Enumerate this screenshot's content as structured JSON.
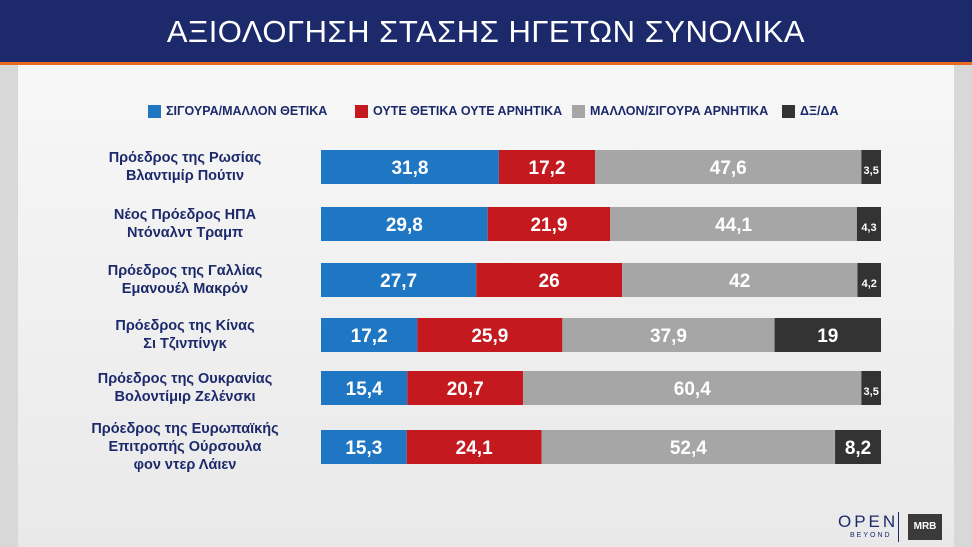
{
  "header": {
    "title": "ΑΞΙΟΛΟΓΗΣΗ ΣΤΑΣΗΣ ΗΓΕΤΩΝ ΣΥΝΟΛΙΚΑ"
  },
  "logos": {
    "open": "OPEN",
    "open_sub": "BEYOND",
    "mrb": "MRB"
  },
  "chart_data": {
    "type": "bar",
    "orientation": "horizontal",
    "stacked": true,
    "title": "ΑΞΙΟΛΟΓΗΣΗ ΣΤΑΣΗΣ ΗΓΕΤΩΝ ΣΥΝΟΛΙΚΑ",
    "legend_position": "top",
    "grid": false,
    "categories": [
      [
        "Πρόεδρος της Ρωσίας",
        "Βλαντιμίρ Πούτιν"
      ],
      [
        "Νέος Πρόεδρος ΗΠΑ",
        "Ντόναλντ Τραμπ"
      ],
      [
        "Πρόεδρος της Γαλλίας",
        "Εμανουέλ Μακρόν"
      ],
      [
        "Πρόεδρος της Κίνας",
        "Σι Τζινπίνγκ"
      ],
      [
        "Πρόεδρος της Ουκρανίας",
        "Βολοντίμιρ Ζελένσκι"
      ],
      [
        "Πρόεδρος της Ευρωπαϊκής",
        "Επιτροπής Ούρσουλα",
        "φον ντερ Λάιεν"
      ]
    ],
    "series": [
      {
        "name": "ΣΙΓΟΥΡΑ/ΜΑΛΛΟΝ ΘΕΤΙΚΑ",
        "color": "#1f76c2",
        "values": [
          31.8,
          29.8,
          27.7,
          17.2,
          15.4,
          15.3
        ],
        "labels": [
          "31,8",
          "29,8",
          "27,7",
          "17,2",
          "15,4",
          "15,3"
        ]
      },
      {
        "name": "ΟΥΤΕ ΘΕΤΙΚΑ ΟΥΤΕ ΑΡΝΗΤΙΚΑ",
        "color": "#c41a1f",
        "values": [
          17.2,
          21.9,
          26,
          25.9,
          20.7,
          24.1
        ],
        "labels": [
          "17,2",
          "21,9",
          "26",
          "25,9",
          "20,7",
          "24,1"
        ]
      },
      {
        "name": "ΜΑΛΛΟΝ/ΣΙΓΟΥΡΑ ΑΡΝΗΤΙΚΑ",
        "color": "#a6a6a6",
        "values": [
          47.6,
          44.1,
          42,
          37.9,
          60.4,
          52.4
        ],
        "labels": [
          "47,6",
          "44,1",
          "42",
          "37,9",
          "60,4",
          "52,4"
        ]
      },
      {
        "name": "ΔΞ/ΔΑ",
        "color": "#333333",
        "values": [
          3.5,
          4.3,
          4.2,
          19,
          3.5,
          8.2
        ],
        "labels": [
          "3,5",
          "4,3",
          "4,2",
          "19",
          "3,5",
          "8,2"
        ]
      }
    ]
  }
}
